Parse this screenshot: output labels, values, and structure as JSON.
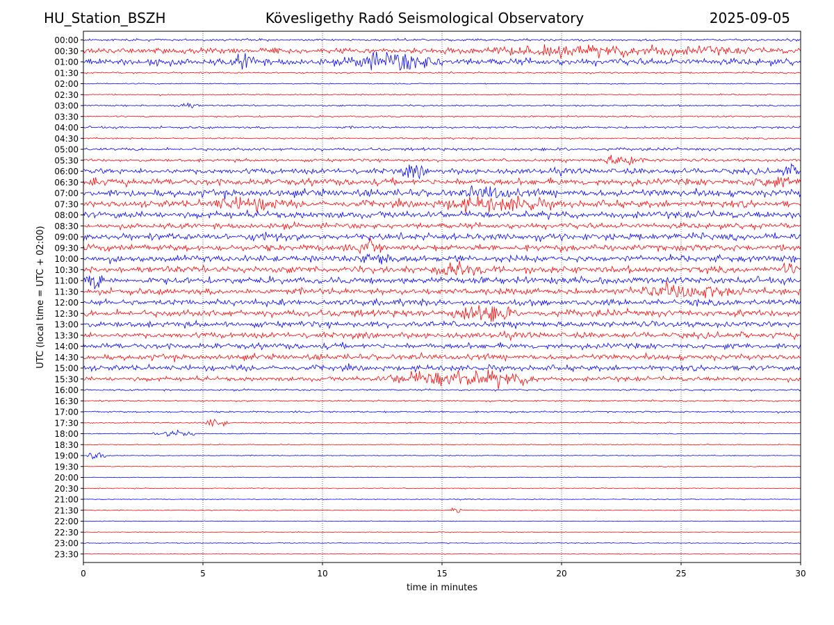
{
  "header": {
    "station": "HU_Station_BSZH",
    "title": "Kövesligethy Radó Seismological Observatory",
    "date": "2025-09-05"
  },
  "chart_data": {
    "type": "line",
    "title": "Kövesligethy Radó Seismological Observatory",
    "xlabel": "time in minutes",
    "ylabel": "UTC (local time = UTC + 02:00)",
    "xlim": [
      0,
      30
    ],
    "xticks": [
      0,
      5,
      10,
      15,
      20,
      25,
      30
    ],
    "vgrid_at_minutes": [
      5,
      10,
      15,
      20,
      25
    ],
    "grid": "vertical dotted",
    "row_labels": [
      "00:00",
      "00:30",
      "01:00",
      "01:30",
      "02:00",
      "02:30",
      "03:00",
      "03:30",
      "04:00",
      "04:30",
      "05:00",
      "05:30",
      "06:00",
      "06:30",
      "07:00",
      "07:30",
      "08:00",
      "08:30",
      "09:00",
      "09:30",
      "10:00",
      "10:30",
      "11:00",
      "11:30",
      "12:00",
      "12:30",
      "13:00",
      "13:30",
      "14:00",
      "14:30",
      "15:00",
      "15:30",
      "16:00",
      "16:30",
      "17:00",
      "17:30",
      "18:00",
      "18:30",
      "19:00",
      "19:30",
      "20:00",
      "20:30",
      "21:00",
      "21:30",
      "22:00",
      "22:30",
      "23:00",
      "23:30"
    ],
    "colors": [
      "#0000ff",
      "#ff0000"
    ],
    "row_activity": [
      0.1,
      0.25,
      0.3,
      0.07,
      0.05,
      0.06,
      0.07,
      0.07,
      0.1,
      0.07,
      0.13,
      0.13,
      0.25,
      0.3,
      0.33,
      0.3,
      0.3,
      0.25,
      0.3,
      0.3,
      0.3,
      0.3,
      0.3,
      0.28,
      0.28,
      0.3,
      0.26,
      0.26,
      0.26,
      0.26,
      0.24,
      0.2,
      0.08,
      0.07,
      0.08,
      0.06,
      0.04,
      0.04,
      0.04,
      0.04,
      0.03,
      0.04,
      0.04,
      0.04,
      0.03,
      0.03,
      0.04,
      0.03
    ],
    "events": [
      {
        "row": "00:30",
        "minutes": [
          14.5,
          29
        ],
        "amplitude": 0.55
      },
      {
        "row": "00:30",
        "minutes": [
          7.5,
          8.5
        ],
        "amplitude": 0.4
      },
      {
        "row": "01:00",
        "minutes": [
          2.5,
          3.5
        ],
        "amplitude": 0.6
      },
      {
        "row": "01:00",
        "minutes": [
          6.3,
          7.5
        ],
        "amplitude": 0.9
      },
      {
        "row": "01:00",
        "minutes": [
          11.0,
          15.0
        ],
        "amplitude": 1.0
      },
      {
        "row": "03:00",
        "minutes": [
          3.8,
          4.8
        ],
        "amplitude": 0.35
      },
      {
        "row": "05:30",
        "minutes": [
          21.5,
          23.5
        ],
        "amplitude": 0.55
      },
      {
        "row": "06:00",
        "minutes": [
          13.0,
          14.5
        ],
        "amplitude": 0.6
      },
      {
        "row": "06:00",
        "minutes": [
          29.0,
          30.0
        ],
        "amplitude": 0.7
      },
      {
        "row": "06:30",
        "minutes": [
          0.0,
          0.6
        ],
        "amplitude": 0.8
      },
      {
        "row": "06:30",
        "minutes": [
          27.5,
          30.0
        ],
        "amplitude": 0.6
      },
      {
        "row": "07:00",
        "minutes": [
          15.5,
          18.5
        ],
        "amplitude": 0.7
      },
      {
        "row": "07:30",
        "minutes": [
          5.0,
          8.5
        ],
        "amplitude": 0.8
      },
      {
        "row": "07:30",
        "minutes": [
          14.5,
          20.0
        ],
        "amplitude": 0.8
      },
      {
        "row": "09:00",
        "minutes": [
          7.0,
          8.5
        ],
        "amplitude": 0.7
      },
      {
        "row": "09:30",
        "minutes": [
          11.5,
          12.5
        ],
        "amplitude": 0.9
      },
      {
        "row": "10:00",
        "minutes": [
          11.5,
          13.5
        ],
        "amplitude": 0.8
      },
      {
        "row": "10:30",
        "minutes": [
          14.5,
          17.0
        ],
        "amplitude": 0.8
      },
      {
        "row": "10:30",
        "minutes": [
          29.0,
          30.0
        ],
        "amplitude": 0.6
      },
      {
        "row": "11:00",
        "minutes": [
          0.0,
          1.0
        ],
        "amplitude": 0.9
      },
      {
        "row": "11:30",
        "minutes": [
          22.5,
          27.5
        ],
        "amplitude": 0.8
      },
      {
        "row": "12:30",
        "minutes": [
          15.0,
          18.0
        ],
        "amplitude": 1.0
      },
      {
        "row": "15:30",
        "minutes": [
          12.5,
          19.0
        ],
        "amplitude": 0.9
      },
      {
        "row": "17:30",
        "minutes": [
          5.0,
          6.0
        ],
        "amplitude": 0.45
      },
      {
        "row": "18:00",
        "minutes": [
          3.0,
          4.8
        ],
        "amplitude": 0.35
      },
      {
        "row": "19:00",
        "minutes": [
          0.2,
          0.9
        ],
        "amplitude": 0.45
      },
      {
        "row": "21:30",
        "minutes": [
          15.4,
          15.8
        ],
        "amplitude": 0.45
      }
    ]
  }
}
